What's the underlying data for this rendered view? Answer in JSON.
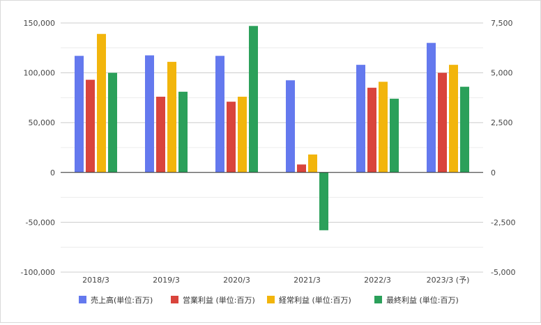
{
  "chart_data": {
    "type": "bar",
    "categories": [
      "2018/3",
      "2019/3",
      "2020/3",
      "2021/3",
      "2022/3",
      "2023/3 (予)"
    ],
    "series": [
      {
        "name": "売上高(単位:百万)",
        "axis": "left",
        "color": "#6479ee",
        "values": [
          117000,
          117500,
          117000,
          92500,
          108000,
          130000
        ]
      },
      {
        "name": "営業利益 (単位:百万)",
        "axis": "right",
        "color": "#d9443c",
        "values": [
          4650,
          3800,
          3550,
          400,
          4250,
          5000
        ]
      },
      {
        "name": "経常利益 (単位:百万)",
        "axis": "right",
        "color": "#f2b50c",
        "values": [
          6950,
          5550,
          3800,
          900,
          4550,
          5400
        ]
      },
      {
        "name": "最終利益 (単位:百万)",
        "axis": "right",
        "color": "#2ba05a",
        "values": [
          5000,
          4050,
          7350,
          -2900,
          3700,
          4300
        ]
      }
    ],
    "y_left": {
      "range": [
        -100000,
        150000
      ],
      "ticks": [
        "150,000",
        "100,000",
        "50,000",
        "0",
        "-50,000",
        "-100,000"
      ]
    },
    "y_right": {
      "range": [
        -5000,
        7500
      ],
      "ticks": [
        "7,500",
        "5,000",
        "2,500",
        "0",
        "-2,500",
        "-5,000"
      ]
    },
    "grid": true,
    "legend_position": "bottom"
  }
}
